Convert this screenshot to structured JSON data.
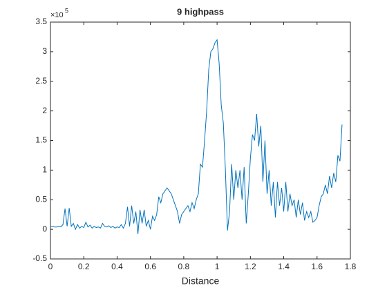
{
  "chart_data": {
    "type": "line",
    "title": "9 highpass",
    "xlabel": "Distance",
    "y_multiplier": "×10",
    "y_multiplier_exponent": "5",
    "xlim": [
      0,
      1.8
    ],
    "xticks": [
      0,
      0.2,
      0.4,
      0.6,
      0.8,
      1,
      1.2,
      1.4,
      1.6,
      1.8
    ],
    "ylim": [
      -0.5,
      3.5
    ],
    "yticks": [
      -0.5,
      0,
      0.5,
      1,
      1.5,
      2,
      2.5,
      3,
      3.5
    ],
    "grid": false,
    "x": [
      0,
      0.0125,
      0.025,
      0.0375,
      0.05,
      0.0625,
      0.075,
      0.0875,
      0.1,
      0.1125,
      0.125,
      0.1375,
      0.15,
      0.1625,
      0.175,
      0.1875,
      0.2,
      0.2125,
      0.225,
      0.2375,
      0.25,
      0.2625,
      0.275,
      0.2875,
      0.3,
      0.3125,
      0.325,
      0.3375,
      0.35,
      0.3625,
      0.375,
      0.3875,
      0.4,
      0.4125,
      0.425,
      0.4375,
      0.45,
      0.4625,
      0.475,
      0.4875,
      0.5,
      0.5125,
      0.525,
      0.5375,
      0.55,
      0.5625,
      0.575,
      0.5875,
      0.6,
      0.6125,
      0.625,
      0.6375,
      0.65,
      0.6625,
      0.675,
      0.6875,
      0.7,
      0.7125,
      0.725,
      0.7375,
      0.75,
      0.7625,
      0.775,
      0.7875,
      0.8,
      0.8125,
      0.825,
      0.8375,
      0.85,
      0.8625,
      0.875,
      0.8875,
      0.9,
      0.9125,
      0.925,
      0.9375,
      0.95,
      0.9625,
      0.975,
      0.9875,
      1,
      1.0125,
      1.025,
      1.0375,
      1.05,
      1.0625,
      1.075,
      1.0875,
      1.1,
      1.1125,
      1.125,
      1.1375,
      1.15,
      1.1625,
      1.175,
      1.1875,
      1.2,
      1.2125,
      1.225,
      1.2375,
      1.25,
      1.2625,
      1.275,
      1.2875,
      1.3,
      1.3125,
      1.325,
      1.3375,
      1.35,
      1.3625,
      1.375,
      1.3875,
      1.4,
      1.4125,
      1.425,
      1.4375,
      1.45,
      1.4625,
      1.475,
      1.4875,
      1.5,
      1.5125,
      1.525,
      1.5375,
      1.55,
      1.5625,
      1.575,
      1.5875,
      1.6,
      1.6125,
      1.625,
      1.6375,
      1.65,
      1.6625,
      1.675,
      1.6875,
      1.7,
      1.7125,
      1.725,
      1.7375,
      1.75
    ],
    "series": [
      {
        "color": "#0072bd",
        "values": [
          0.05,
          0.05,
          0.04,
          0.04,
          0.05,
          0.04,
          0.08,
          0.35,
          0.05,
          0.36,
          0.05,
          0.1,
          0.0,
          0.08,
          0.02,
          0.05,
          0.03,
          0.12,
          0.04,
          0.07,
          0.02,
          0.05,
          0.03,
          0.04,
          0.02,
          0.1,
          0.05,
          0.04,
          0.06,
          0.03,
          0.05,
          0.02,
          0.04,
          0.03,
          0.08,
          0.02,
          0.1,
          0.38,
          0.05,
          0.4,
          0.1,
          0.3,
          -0.08,
          0.33,
          0.1,
          0.33,
          0.05,
          0.15,
          0.0,
          0.22,
          0.15,
          0.25,
          0.55,
          0.45,
          0.6,
          0.65,
          0.7,
          0.65,
          0.6,
          0.5,
          0.4,
          0.3,
          0.1,
          0.25,
          0.3,
          0.35,
          0.4,
          0.3,
          0.45,
          0.35,
          0.5,
          0.6,
          1.1,
          1.05,
          1.5,
          2.0,
          2.7,
          3.0,
          3.05,
          3.15,
          3.2,
          2.8,
          2.1,
          1.8,
          1.0,
          -0.02,
          0.3,
          1.1,
          0.5,
          1.0,
          0.7,
          1.0,
          0.5,
          1.05,
          0.1,
          0.6,
          1.2,
          1.6,
          1.5,
          1.95,
          1.4,
          1.75,
          0.8,
          1.5,
          0.6,
          1.0,
          0.4,
          0.8,
          0.2,
          0.8,
          0.4,
          0.7,
          0.3,
          0.8,
          0.3,
          0.6,
          0.4,
          0.5,
          0.2,
          0.5,
          0.25,
          0.45,
          0.15,
          0.3,
          0.2,
          0.3,
          0.12,
          0.15,
          0.2,
          0.4,
          0.55,
          0.6,
          0.75,
          0.6,
          0.9,
          0.7,
          0.95,
          0.8,
          1.25,
          1.15,
          1.77
        ]
      }
    ]
  }
}
